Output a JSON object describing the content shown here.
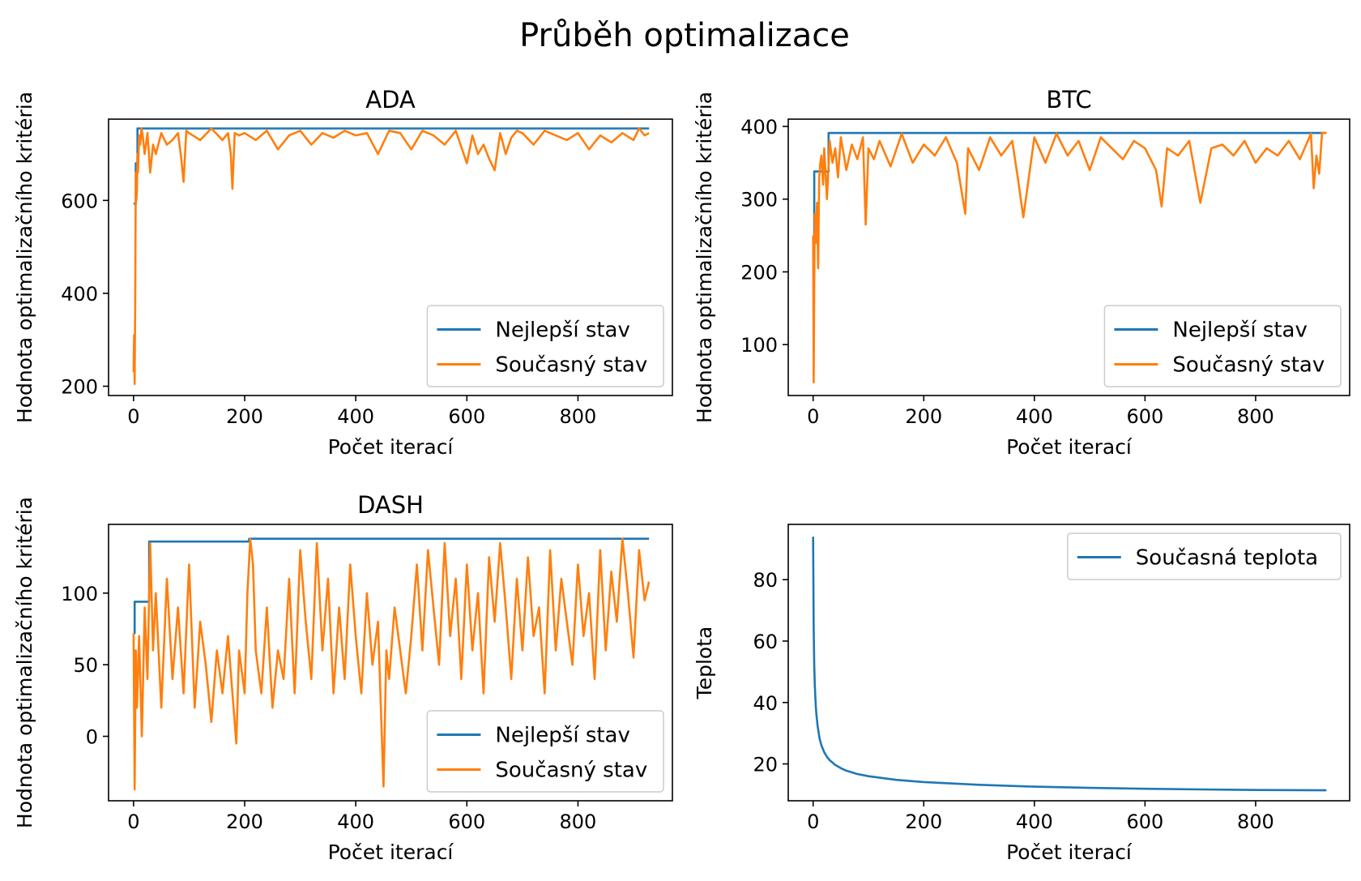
{
  "figure": {
    "title": "Průběh optimalizace"
  },
  "chart_data": [
    {
      "type": "line",
      "title": "ADA",
      "xlabel": "Počet iterací",
      "ylabel": "Hodnota optimalizačního kritéria",
      "xlim": [
        -45,
        970
      ],
      "ylim": [
        180,
        775
      ],
      "xticks": [
        0,
        200,
        400,
        600,
        800
      ],
      "yticks": [
        200,
        400,
        600
      ],
      "legend": "lower-right",
      "series": [
        {
          "name": "Nejlepší stav",
          "color": "#1f77b4",
          "x": [
            0,
            4,
            4,
            7,
            7,
            928
          ],
          "y": [
            593,
            593,
            680,
            680,
            755,
            755
          ]
        },
        {
          "name": "Současný stav",
          "color": "#ff7f0e",
          "x": [
            0,
            1,
            2,
            3,
            4,
            5,
            6,
            7,
            8,
            10,
            12,
            14,
            16,
            20,
            25,
            30,
            35,
            40,
            50,
            60,
            70,
            80,
            85,
            90,
            95,
            100,
            120,
            140,
            160,
            170,
            175,
            178,
            182,
            190,
            200,
            220,
            240,
            260,
            280,
            300,
            320,
            340,
            360,
            380,
            400,
            420,
            440,
            460,
            480,
            500,
            520,
            540,
            560,
            580,
            600,
            610,
            620,
            630,
            640,
            650,
            660,
            670,
            680,
            690,
            700,
            720,
            740,
            760,
            780,
            800,
            820,
            840,
            860,
            880,
            900,
            910,
            920,
            928
          ],
          "y": [
            230,
            310,
            205,
            380,
            660,
            600,
            620,
            700,
            660,
            740,
            720,
            755,
            745,
            700,
            745,
            660,
            720,
            700,
            745,
            720,
            730,
            745,
            700,
            640,
            750,
            745,
            730,
            755,
            730,
            745,
            700,
            625,
            745,
            740,
            745,
            730,
            750,
            710,
            740,
            750,
            720,
            745,
            735,
            750,
            740,
            745,
            700,
            750,
            745,
            710,
            750,
            740,
            720,
            750,
            680,
            740,
            700,
            720,
            690,
            665,
            745,
            700,
            735,
            750,
            745,
            720,
            750,
            740,
            730,
            745,
            710,
            740,
            725,
            745,
            730,
            755,
            740,
            745
          ]
        }
      ]
    },
    {
      "type": "line",
      "title": "BTC",
      "xlabel": "Počet iterací",
      "ylabel": "Hodnota optimalizačního kritéria",
      "xlim": [
        -45,
        970
      ],
      "ylim": [
        30,
        410
      ],
      "xticks": [
        0,
        200,
        400,
        600,
        800
      ],
      "yticks": [
        100,
        200,
        300,
        400
      ],
      "legend": "lower-right",
      "series": [
        {
          "name": "Nejlepší stav",
          "color": "#1f77b4",
          "x": [
            0,
            2,
            2,
            28,
            28,
            928
          ],
          "y": [
            192,
            192,
            338,
            338,
            391,
            391
          ]
        },
        {
          "name": "Současný stav",
          "color": "#ff7f0e",
          "x": [
            0,
            1,
            2,
            3,
            5,
            7,
            9,
            11,
            13,
            15,
            18,
            20,
            25,
            30,
            35,
            40,
            45,
            50,
            60,
            70,
            80,
            90,
            95,
            100,
            110,
            120,
            140,
            160,
            180,
            200,
            220,
            240,
            260,
            275,
            280,
            300,
            320,
            340,
            360,
            370,
            380,
            400,
            420,
            440,
            460,
            480,
            500,
            520,
            540,
            560,
            580,
            600,
            620,
            630,
            640,
            660,
            680,
            700,
            720,
            740,
            760,
            780,
            800,
            820,
            840,
            860,
            880,
            900,
            905,
            910,
            915,
            920,
            928
          ],
          "y": [
            250,
            48,
            190,
            280,
            240,
            295,
            205,
            330,
            350,
            360,
            320,
            370,
            300,
            380,
            350,
            370,
            330,
            385,
            340,
            375,
            355,
            385,
            265,
            370,
            355,
            380,
            345,
            390,
            350,
            375,
            360,
            385,
            350,
            280,
            370,
            340,
            385,
            360,
            380,
            330,
            275,
            385,
            350,
            390,
            360,
            380,
            340,
            385,
            370,
            355,
            380,
            370,
            340,
            290,
            370,
            360,
            380,
            295,
            370,
            375,
            360,
            380,
            350,
            370,
            360,
            380,
            355,
            390,
            315,
            360,
            335,
            391,
            391
          ]
        }
      ]
    },
    {
      "type": "line",
      "title": "DASH",
      "xlabel": "Počet iterací",
      "ylabel": "Hodnota optimalizačního kritéria",
      "xlim": [
        -45,
        970
      ],
      "ylim": [
        -45,
        148
      ],
      "xticks": [
        0,
        200,
        400,
        600,
        800
      ],
      "yticks": [
        0,
        50,
        100
      ],
      "legend": "lower-right",
      "series": [
        {
          "name": "Nejlepší stav",
          "color": "#1f77b4",
          "x": [
            0,
            2,
            2,
            28,
            28,
            208,
            208,
            928
          ],
          "y": [
            72,
            72,
            94,
            94,
            136,
            136,
            138,
            138
          ]
        },
        {
          "name": "Současný stav",
          "color": "#ff7f0e",
          "x": [
            0,
            2,
            4,
            6,
            10,
            15,
            20,
            25,
            30,
            35,
            40,
            50,
            60,
            70,
            80,
            90,
            100,
            110,
            120,
            130,
            140,
            150,
            160,
            170,
            180,
            185,
            190,
            200,
            205,
            210,
            215,
            220,
            230,
            240,
            250,
            260,
            270,
            280,
            290,
            300,
            310,
            320,
            330,
            340,
            350,
            360,
            370,
            380,
            390,
            400,
            410,
            420,
            430,
            440,
            450,
            455,
            460,
            470,
            480,
            490,
            500,
            510,
            520,
            530,
            540,
            550,
            560,
            570,
            580,
            590,
            600,
            610,
            620,
            630,
            640,
            650,
            660,
            670,
            680,
            690,
            700,
            710,
            720,
            730,
            740,
            750,
            760,
            770,
            780,
            790,
            800,
            810,
            820,
            830,
            840,
            850,
            860,
            870,
            880,
            890,
            900,
            910,
            920,
            928
          ],
          "y": [
            72,
            -37,
            60,
            20,
            70,
            0,
            90,
            40,
            135,
            60,
            100,
            20,
            110,
            40,
            90,
            30,
            120,
            20,
            80,
            50,
            10,
            60,
            30,
            70,
            20,
            -5,
            60,
            30,
            100,
            138,
            120,
            60,
            30,
            90,
            20,
            60,
            40,
            110,
            30,
            130,
            80,
            40,
            135,
            60,
            110,
            30,
            90,
            40,
            120,
            70,
            30,
            100,
            50,
            80,
            -35,
            60,
            40,
            90,
            60,
            30,
            70,
            120,
            60,
            130,
            90,
            50,
            135,
            70,
            110,
            40,
            120,
            60,
            100,
            30,
            125,
            80,
            135,
            90,
            40,
            110,
            60,
            125,
            70,
            90,
            30,
            130,
            60,
            110,
            80,
            50,
            120,
            70,
            100,
            40,
            130,
            60,
            115,
            80,
            138,
            100,
            55,
            130,
            95,
            108
          ]
        }
      ]
    },
    {
      "type": "line",
      "title": "",
      "xlabel": "Počet iterací",
      "ylabel": "Teplota",
      "xlim": [
        -45,
        970
      ],
      "ylim": [
        8,
        98
      ],
      "xticks": [
        0,
        200,
        400,
        600,
        800
      ],
      "yticks": [
        20,
        40,
        60,
        80
      ],
      "legend": "upper-right",
      "series": [
        {
          "name": "Současná teplota",
          "color": "#1f77b4",
          "x": [
            0,
            1,
            2,
            3,
            4,
            5,
            6,
            8,
            10,
            12,
            15,
            20,
            25,
            30,
            40,
            50,
            60,
            80,
            100,
            150,
            200,
            300,
            400,
            500,
            600,
            700,
            800,
            928
          ],
          "y": [
            94,
            64,
            52,
            45.5,
            41.5,
            38.5,
            36,
            32.5,
            30,
            28,
            26,
            23.8,
            22.3,
            21.2,
            19.7,
            18.6,
            17.8,
            16.7,
            16,
            14.8,
            14.1,
            13.2,
            12.6,
            12.2,
            11.9,
            11.7,
            11.5,
            11.4
          ]
        }
      ]
    }
  ]
}
